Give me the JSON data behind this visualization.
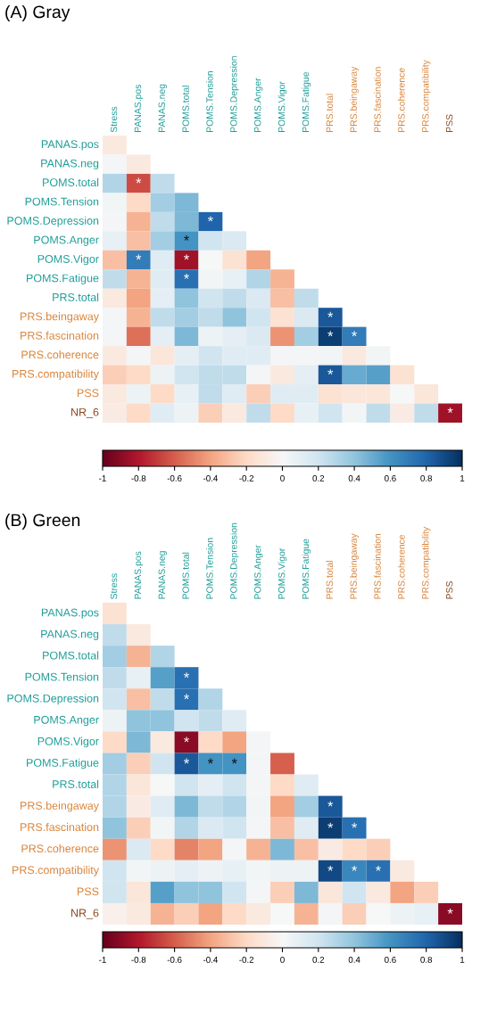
{
  "chart_data": [
    {
      "type": "heatmap",
      "title": "(A) Gray",
      "categories": [
        "Stress",
        "PANAS.pos",
        "PANAS.neg",
        "POMS.total",
        "POMS.Tension",
        "POMS.Depression",
        "POMS.Anger",
        "POMS.Vigor",
        "POMS.Fatigue",
        "PRS.total",
        "PRS.beingaway",
        "PRS.fascination",
        "PRS.coherence",
        "PRS.compatibility",
        "PSS"
      ],
      "y_categories": [
        "PANAS.pos",
        "PANAS.neg",
        "POMS.total",
        "POMS.Tension",
        "POMS.Depression",
        "POMS.Anger",
        "POMS.Vigor",
        "POMS.Fatigue",
        "PRS.total",
        "PRS.beingaway",
        "PRS.fascination",
        "PRS.coherence",
        "PRS.compatibility",
        "PSS",
        "NR_6"
      ],
      "cells": [
        [
          -0.1,
          null,
          null,
          null,
          null,
          null,
          null,
          null,
          null,
          null,
          null,
          null,
          null,
          null,
          null
        ],
        [
          0.02,
          -0.1,
          null,
          null,
          null,
          null,
          null,
          null,
          null,
          null,
          null,
          null,
          null,
          null,
          null
        ],
        [
          0.3,
          -0.65,
          0.25,
          null,
          null,
          null,
          null,
          null,
          null,
          null,
          null,
          null,
          null,
          null,
          null
        ],
        [
          0.03,
          -0.2,
          0.35,
          0.45,
          null,
          null,
          null,
          null,
          null,
          null,
          null,
          null,
          null,
          null,
          null
        ],
        [
          0.02,
          -0.35,
          0.25,
          0.45,
          0.8,
          null,
          null,
          null,
          null,
          null,
          null,
          null,
          null,
          null,
          null
        ],
        [
          0.08,
          -0.3,
          0.35,
          0.6,
          0.2,
          0.15,
          null,
          null,
          null,
          null,
          null,
          null,
          null,
          null,
          null
        ],
        [
          -0.3,
          0.7,
          0.12,
          -0.85,
          0,
          -0.15,
          -0.4,
          null,
          null,
          null,
          null,
          null,
          null,
          null,
          null
        ],
        [
          0.25,
          -0.35,
          0.12,
          0.75,
          0.03,
          0.08,
          0.3,
          -0.35,
          null,
          null,
          null,
          null,
          null,
          null,
          null
        ],
        [
          -0.1,
          -0.4,
          0.1,
          0.4,
          0.2,
          0.25,
          0.15,
          -0.3,
          0.25,
          null,
          null,
          null,
          null,
          null,
          null
        ],
        [
          0.02,
          -0.35,
          0.25,
          0.35,
          0.25,
          0.4,
          0.2,
          -0.15,
          0.15,
          0.85,
          null,
          null,
          null,
          null,
          null
        ],
        [
          0.02,
          -0.55,
          0.1,
          0.45,
          0.05,
          0.1,
          0.15,
          -0.45,
          0.35,
          0.95,
          0.7,
          null,
          null,
          null,
          null
        ],
        [
          -0.1,
          0.02,
          -0.12,
          0.1,
          0.2,
          0.12,
          0.12,
          0.02,
          0.02,
          0.03,
          -0.1,
          0.03,
          null,
          null,
          null
        ],
        [
          -0.25,
          -0.2,
          0.05,
          0.2,
          0.25,
          0.25,
          0.02,
          -0.1,
          0.1,
          0.85,
          0.5,
          0.55,
          -0.15,
          null,
          null
        ],
        [
          -0.1,
          0.05,
          -0.2,
          0.08,
          0.25,
          0.12,
          -0.25,
          0.12,
          0.12,
          -0.15,
          -0.12,
          -0.12,
          0,
          -0.12,
          null
        ],
        [
          -0.08,
          -0.2,
          0.12,
          0.05,
          -0.25,
          -0.1,
          0.25,
          -0.2,
          0.08,
          0.2,
          0.03,
          0.25,
          -0.08,
          0.25,
          -0.85
        ]
      ],
      "cell_labels": [
        [
          null,
          null,
          null,
          null,
          null,
          null,
          null,
          null,
          null,
          null,
          null,
          null,
          null,
          null,
          null
        ],
        [
          null,
          null,
          null,
          null,
          null,
          null,
          null,
          null,
          null,
          null,
          null,
          null,
          null,
          null,
          null
        ],
        [
          null,
          "*",
          null,
          null,
          null,
          null,
          null,
          null,
          null,
          null,
          null,
          null,
          null,
          null,
          null
        ],
        [
          null,
          null,
          null,
          null,
          null,
          null,
          null,
          null,
          null,
          null,
          null,
          null,
          null,
          null,
          null
        ],
        [
          null,
          null,
          null,
          null,
          "*",
          null,
          null,
          null,
          null,
          null,
          null,
          null,
          null,
          null,
          null
        ],
        [
          null,
          null,
          null,
          "*",
          null,
          null,
          null,
          null,
          null,
          null,
          null,
          null,
          null,
          null,
          null
        ],
        [
          null,
          "*",
          null,
          "*",
          null,
          null,
          null,
          null,
          null,
          null,
          null,
          null,
          null,
          null,
          null
        ],
        [
          null,
          null,
          null,
          "*",
          null,
          null,
          null,
          null,
          null,
          null,
          null,
          null,
          null,
          null,
          null
        ],
        [
          null,
          null,
          null,
          null,
          null,
          null,
          null,
          null,
          null,
          null,
          null,
          null,
          null,
          null,
          null
        ],
        [
          null,
          null,
          null,
          null,
          null,
          null,
          null,
          null,
          null,
          "*",
          null,
          null,
          null,
          null,
          null
        ],
        [
          null,
          null,
          null,
          null,
          null,
          null,
          null,
          null,
          null,
          "*",
          "*",
          null,
          null,
          null,
          null
        ],
        [
          null,
          null,
          null,
          null,
          null,
          null,
          null,
          null,
          null,
          null,
          null,
          null,
          null,
          null,
          null
        ],
        [
          null,
          null,
          null,
          null,
          null,
          null,
          null,
          null,
          null,
          "*",
          null,
          null,
          null,
          null,
          null
        ],
        [
          null,
          null,
          null,
          null,
          null,
          null,
          null,
          null,
          null,
          null,
          null,
          null,
          null,
          null,
          null
        ],
        [
          null,
          null,
          null,
          null,
          null,
          null,
          null,
          null,
          null,
          null,
          null,
          null,
          null,
          null,
          "*"
        ]
      ],
      "clim": [
        -1,
        1
      ],
      "cticks": [
        -1,
        -0.8,
        -0.6,
        -0.4,
        -0.2,
        0,
        0.2,
        0.4,
        0.6,
        0.8,
        1
      ]
    },
    {
      "type": "heatmap",
      "title": "(B) Green",
      "categories": [
        "Stress",
        "PANAS.pos",
        "PANAS.neg",
        "POMS.total",
        "POMS.Tension",
        "POMS.Depression",
        "POMS.Anger",
        "POMS.Vigor",
        "POMS.Fatigue",
        "PRS.total",
        "PRS.beingaway",
        "PRS.fascination",
        "PRS.coherence",
        "PRS.compatibility",
        "PSS"
      ],
      "y_categories": [
        "PANAS.pos",
        "PANAS.neg",
        "POMS.total",
        "POMS.Tension",
        "POMS.Depression",
        "POMS.Anger",
        "POMS.Vigor",
        "POMS.Fatigue",
        "PRS.total",
        "PRS.beingaway",
        "PRS.fascination",
        "PRS.coherence",
        "PRS.compatibility",
        "PSS",
        "NR_6"
      ],
      "cells": [
        [
          -0.15,
          null,
          null,
          null,
          null,
          null,
          null,
          null,
          null,
          null,
          null,
          null,
          null,
          null,
          null
        ],
        [
          0.25,
          -0.1,
          null,
          null,
          null,
          null,
          null,
          null,
          null,
          null,
          null,
          null,
          null,
          null,
          null
        ],
        [
          0.35,
          -0.35,
          0.3,
          null,
          null,
          null,
          null,
          null,
          null,
          null,
          null,
          null,
          null,
          null,
          null
        ],
        [
          0.25,
          0.08,
          0.55,
          0.75,
          null,
          null,
          null,
          null,
          null,
          null,
          null,
          null,
          null,
          null,
          null
        ],
        [
          0.2,
          -0.3,
          0.25,
          0.75,
          0.3,
          null,
          null,
          null,
          null,
          null,
          null,
          null,
          null,
          null,
          null
        ],
        [
          0.05,
          0.4,
          0.4,
          0.2,
          0.25,
          0.12,
          null,
          null,
          null,
          null,
          null,
          null,
          null,
          null,
          null
        ],
        [
          -0.2,
          0.45,
          -0.1,
          -0.9,
          -0.2,
          -0.4,
          0.02,
          null,
          null,
          null,
          null,
          null,
          null,
          null,
          null
        ],
        [
          0.35,
          -0.25,
          0.2,
          0.85,
          0.6,
          0.6,
          0.02,
          -0.6,
          null,
          null,
          null,
          null,
          null,
          null,
          null
        ],
        [
          0.3,
          -0.12,
          0,
          0.2,
          0.1,
          0.2,
          0.02,
          -0.2,
          0.12,
          null,
          null,
          null,
          null,
          null,
          null
        ],
        [
          0.3,
          -0.08,
          0.12,
          0.45,
          0.25,
          0.3,
          0.03,
          -0.4,
          0.35,
          0.85,
          null,
          null,
          null,
          null,
          null
        ],
        [
          0.4,
          -0.25,
          0.03,
          0.3,
          0.15,
          0.2,
          0.02,
          -0.3,
          0.12,
          0.95,
          0.75,
          null,
          null,
          null,
          null
        ],
        [
          -0.45,
          0.15,
          -0.2,
          -0.5,
          -0.4,
          0.02,
          -0.35,
          0.45,
          -0.3,
          -0.08,
          -0.2,
          -0.25,
          null,
          null,
          null
        ],
        [
          0.2,
          0.03,
          0.05,
          0.1,
          0.05,
          0.08,
          0.03,
          0.05,
          0.05,
          0.9,
          0.65,
          0.75,
          -0.1,
          null,
          null
        ],
        [
          0.2,
          -0.12,
          0.55,
          0.4,
          0.4,
          0.2,
          0.02,
          -0.25,
          0.45,
          -0.12,
          0.2,
          -0.1,
          -0.4,
          -0.25,
          null
        ],
        [
          -0.05,
          -0.1,
          -0.35,
          -0.25,
          -0.4,
          -0.2,
          -0.1,
          0,
          -0.35,
          0.02,
          -0.25,
          0,
          0.05,
          0.08,
          -0.9
        ]
      ],
      "cell_labels": [
        [
          null,
          null,
          null,
          null,
          null,
          null,
          null,
          null,
          null,
          null,
          null,
          null,
          null,
          null,
          null
        ],
        [
          null,
          null,
          null,
          null,
          null,
          null,
          null,
          null,
          null,
          null,
          null,
          null,
          null,
          null,
          null
        ],
        [
          null,
          null,
          null,
          null,
          null,
          null,
          null,
          null,
          null,
          null,
          null,
          null,
          null,
          null,
          null
        ],
        [
          null,
          null,
          null,
          "*",
          null,
          null,
          null,
          null,
          null,
          null,
          null,
          null,
          null,
          null,
          null
        ],
        [
          null,
          null,
          null,
          "*",
          null,
          null,
          null,
          null,
          null,
          null,
          null,
          null,
          null,
          null,
          null
        ],
        [
          null,
          null,
          null,
          null,
          null,
          null,
          null,
          null,
          null,
          null,
          null,
          null,
          null,
          null,
          null
        ],
        [
          null,
          null,
          null,
          "*",
          null,
          null,
          null,
          null,
          null,
          null,
          null,
          null,
          null,
          null,
          null
        ],
        [
          null,
          null,
          null,
          "*",
          "*",
          "*",
          null,
          null,
          null,
          null,
          null,
          null,
          null,
          null,
          null
        ],
        [
          null,
          null,
          null,
          null,
          null,
          null,
          null,
          null,
          null,
          null,
          null,
          null,
          null,
          null,
          null
        ],
        [
          null,
          null,
          null,
          null,
          null,
          null,
          null,
          null,
          null,
          "*",
          null,
          null,
          null,
          null,
          null
        ],
        [
          null,
          null,
          null,
          null,
          null,
          null,
          null,
          null,
          null,
          "*",
          "*",
          null,
          null,
          null,
          null
        ],
        [
          null,
          null,
          null,
          null,
          null,
          null,
          null,
          null,
          null,
          null,
          null,
          null,
          null,
          null,
          null
        ],
        [
          null,
          null,
          null,
          null,
          null,
          null,
          null,
          null,
          null,
          "*",
          "*",
          "*",
          null,
          null,
          null
        ],
        [
          null,
          null,
          null,
          null,
          null,
          null,
          null,
          null,
          null,
          null,
          null,
          null,
          null,
          null,
          null
        ],
        [
          null,
          null,
          null,
          null,
          null,
          null,
          null,
          null,
          null,
          null,
          null,
          null,
          null,
          null,
          "*"
        ]
      ],
      "clim": [
        -1,
        1
      ],
      "cticks": [
        -1,
        -0.8,
        -0.6,
        -0.4,
        -0.2,
        0,
        0.2,
        0.4,
        0.6,
        0.8,
        1
      ]
    }
  ]
}
